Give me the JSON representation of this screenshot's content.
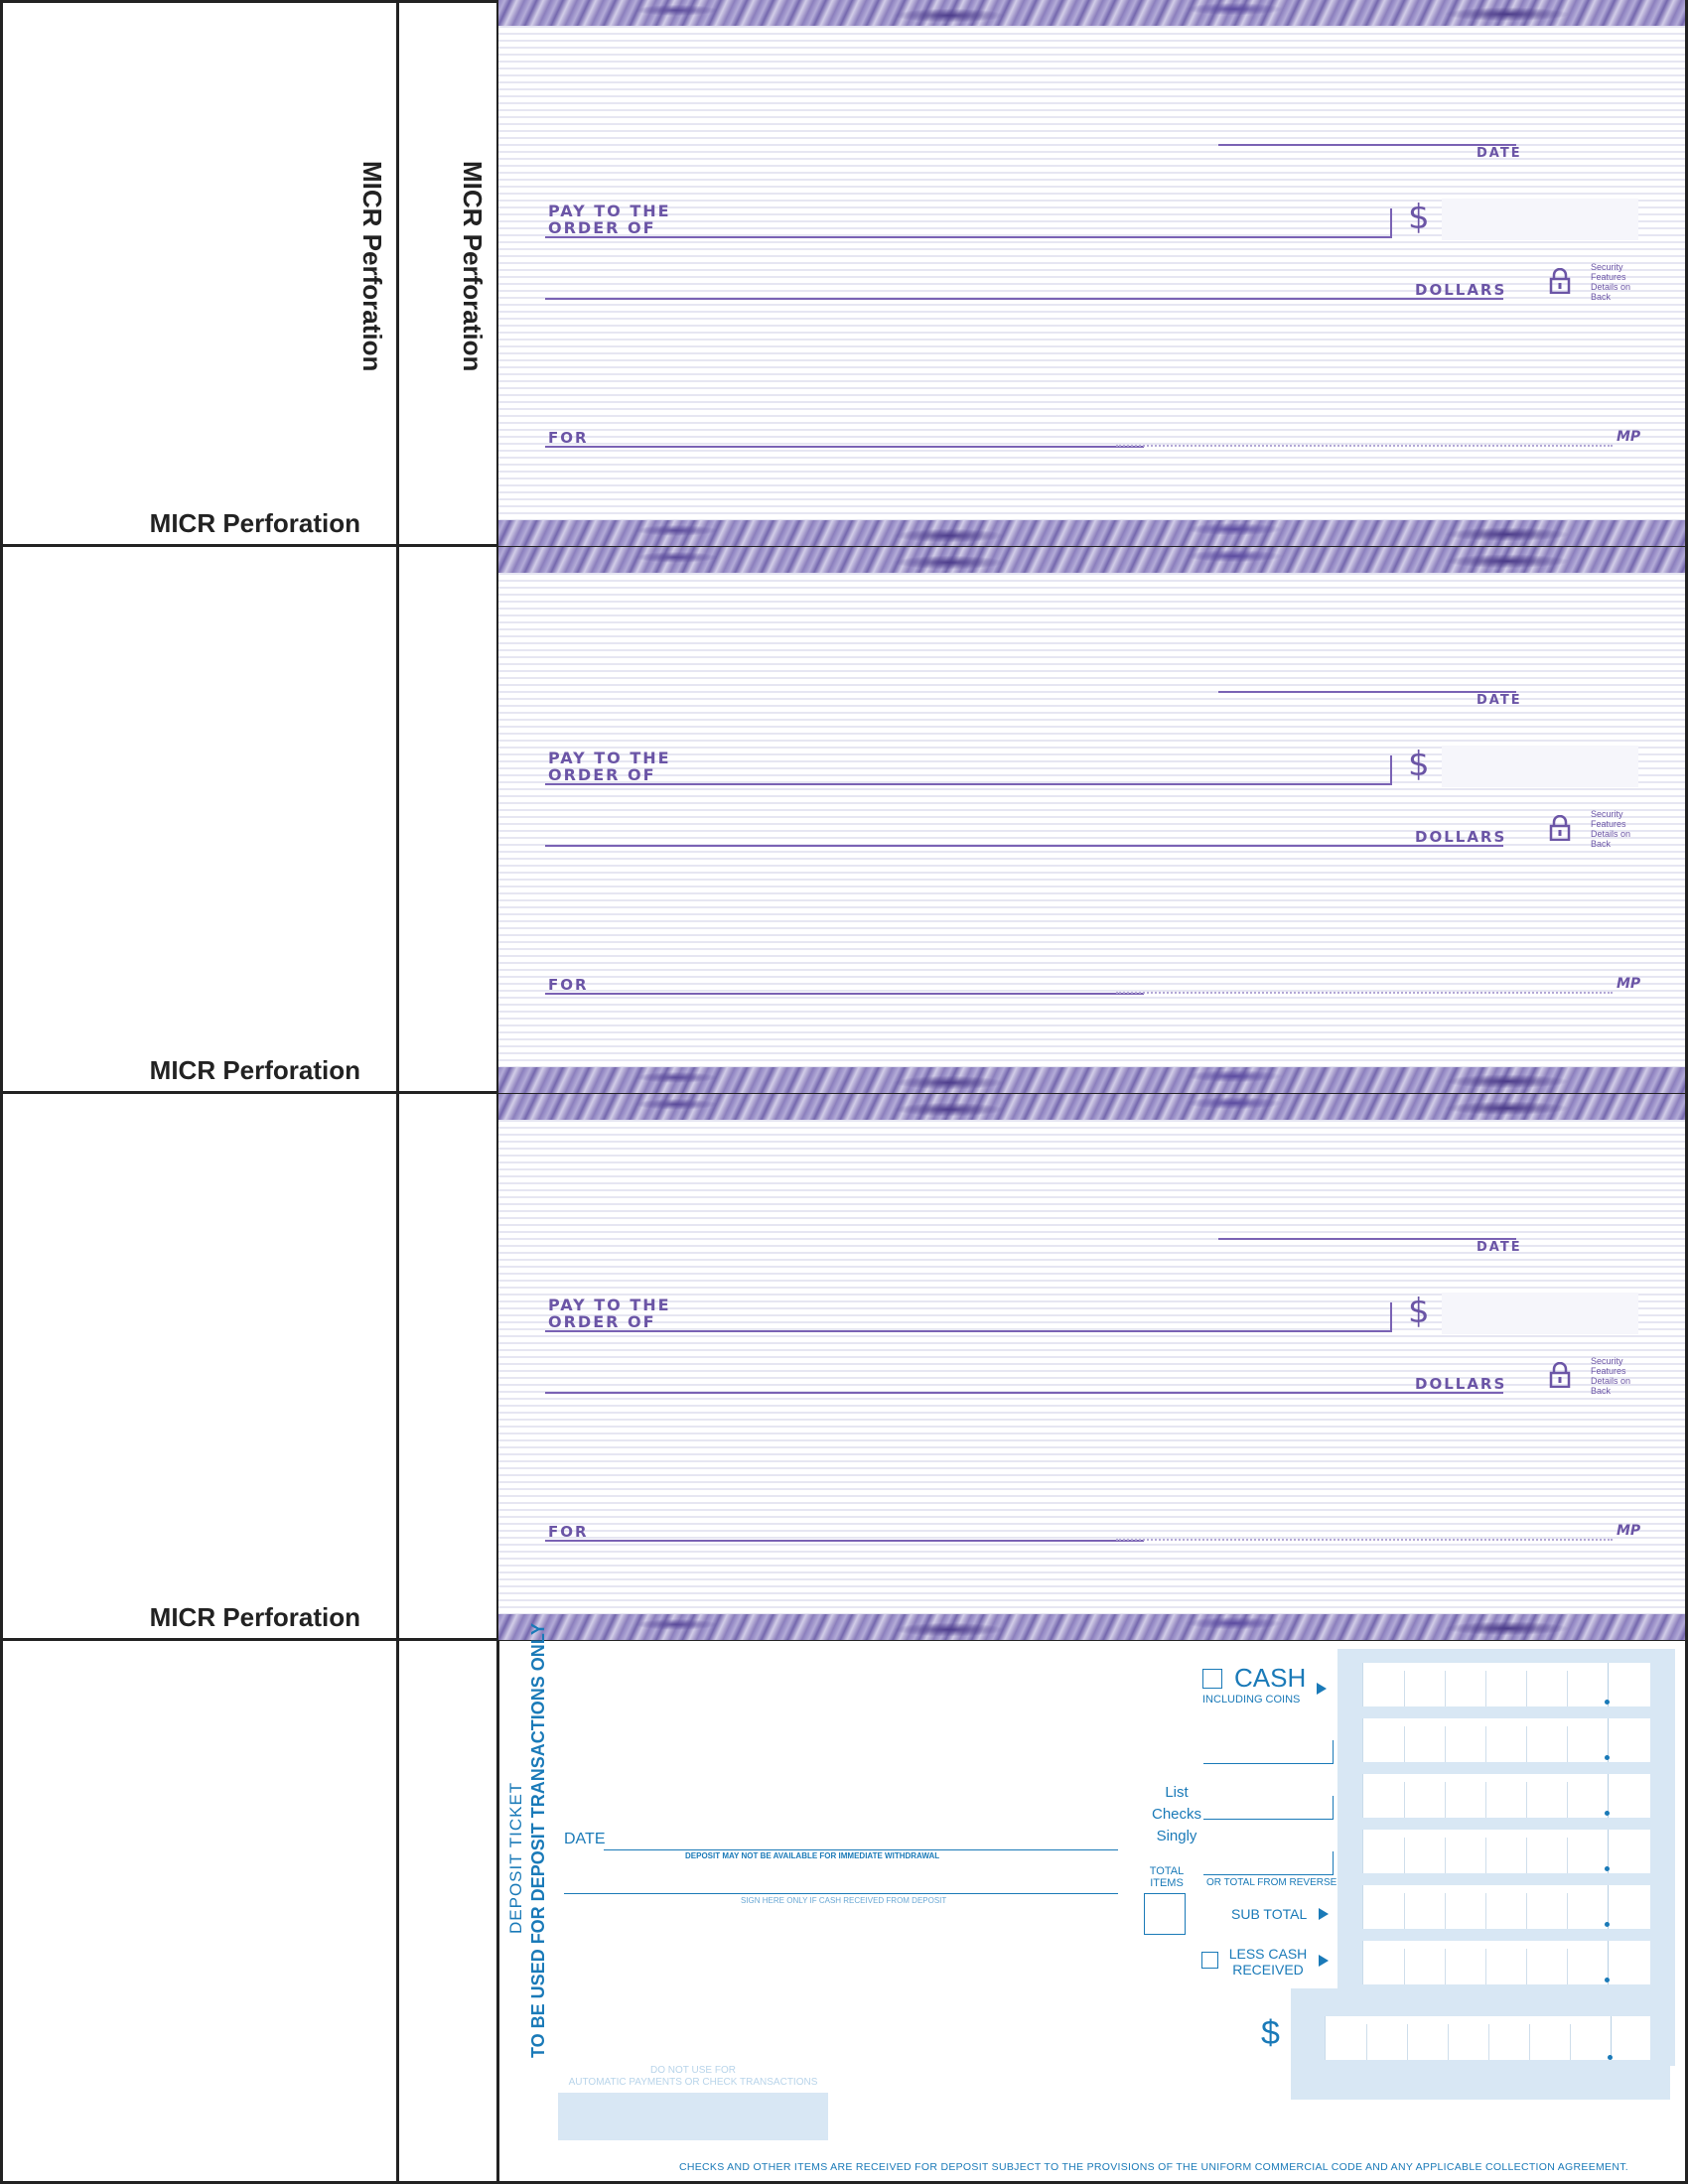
{
  "micr": {
    "label": "MICR Perforation"
  },
  "check": {
    "date_label": "Date",
    "pay_line1": "Pay to the",
    "pay_line2": "Order of",
    "dollar_sign": "$",
    "dollars_label": "Dollars",
    "security_text": "Security Features Details on Back",
    "for_label": "For",
    "mp_mark": "MP",
    "colors": {
      "ink": "#6b55a6",
      "band": "#7467ad"
    }
  },
  "deposit": {
    "vertical_title": "DEPOSIT  TICKET",
    "vertical_note": "TO BE USED FOR DEPOSIT TRANSACTIONS ONLY",
    "date_label": "DATE",
    "availability_note": "DEPOSIT MAY NOT BE AVAILABLE FOR IMMEDIATE WITHDRAWAL",
    "sign_note": "SIGN HERE ONLY IF CASH RECEIVED FROM DEPOSIT",
    "no_use_line1": "DO NOT USE FOR",
    "no_use_line2": "AUTOMATIC PAYMENTS OR CHECK TRANSACTIONS",
    "cash_label": "CASH",
    "coins_label": "INCLUDING COINS",
    "list_line1": "List",
    "list_line2": "Checks",
    "list_line3": "Singly",
    "total_items_line1": "TOTAL",
    "total_items_line2": "ITEMS",
    "reverse_label": "OR TOTAL FROM REVERSE",
    "subtotal_label": "SUB TOTAL",
    "less_cash_line1": "LESS CASH",
    "less_cash_line2": "RECEIVED",
    "dollar_sign": "$",
    "footer": "CHECKS AND OTHER ITEMS ARE RECEIVED FOR DEPOSIT SUBJECT TO THE PROVISIONS OF THE UNIFORM COMMERCIAL CODE AND ANY APPLICABLE COLLECTION AGREEMENT.",
    "colors": {
      "ink": "#1a7ab8",
      "fill": "#d8e7f4"
    }
  }
}
